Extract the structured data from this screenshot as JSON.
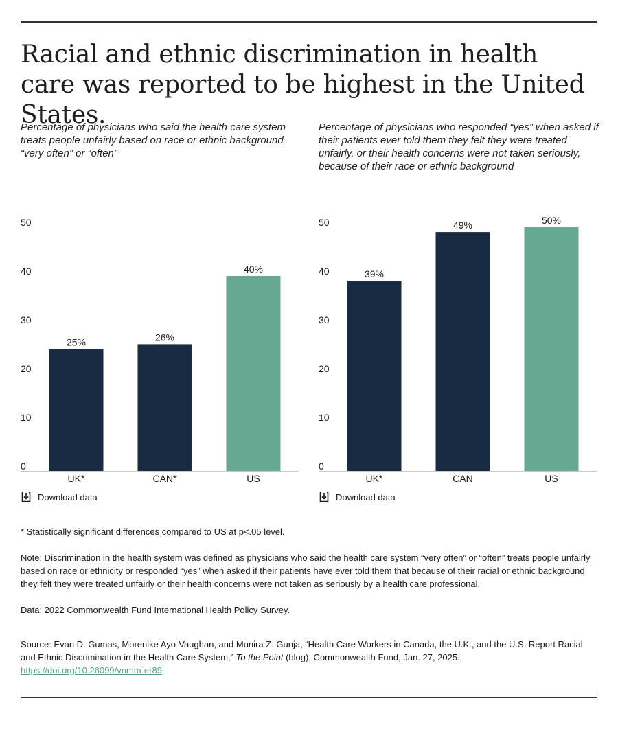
{
  "title": "Racial and ethnic discrimination in health care was reported to be highest in the United States.",
  "colors": {
    "navy": "#172b43",
    "green": "#66a891",
    "link": "#5a9e87"
  },
  "download_label": "Download data",
  "chart_data": [
    {
      "type": "bar",
      "title": "Percentage of physicians who said the health care system treats people unfairly based on race or ethnic background “very often” or “often”",
      "categories": [
        "UK*",
        "CAN*",
        "US"
      ],
      "values": [
        25,
        26,
        40
      ],
      "value_labels": [
        "25%",
        "26%",
        "40%"
      ],
      "highlight": [
        false,
        false,
        true
      ],
      "yticks": [
        "0",
        "10",
        "20",
        "30",
        "40",
        "50"
      ],
      "ylim": [
        0,
        50
      ],
      "xlabel": "",
      "ylabel": ""
    },
    {
      "type": "bar",
      "title": "Percentage of physicians who responded “yes” when asked if their patients ever told them they felt they were treated unfairly, or their health concerns were not taken seriously, because of their race or ethnic background",
      "categories": [
        "UK*",
        "CAN",
        "US"
      ],
      "values": [
        39,
        49,
        50
      ],
      "value_labels": [
        "39%",
        "49%",
        "50%"
      ],
      "highlight": [
        false,
        false,
        true
      ],
      "yticks": [
        "0",
        "10",
        "20",
        "30",
        "40",
        "50"
      ],
      "ylim": [
        0,
        50
      ],
      "xlabel": "",
      "ylabel": ""
    }
  ],
  "notes": {
    "significance": "* Statistically significant differences compared to US at p<.05 level.",
    "note": "Note: Discrimination in the health system was defined as physicians who said the health care system “very often” or “often” treats people unfairly based on race or ethnicity or responded “yes” when asked if their patients have ever told them that because of their racial or ethnic background they felt they were treated unfairly or their health concerns were not taken as seriously by a health care professional.",
    "data": "Data: 2022 Commonwealth Fund International Health Policy Survey.",
    "source_prefix": "Source: Evan D. Gumas, Morenike Ayo-Vaughan, and Munira Z. Gunja, “Health Care Workers in Canada, the U.K., and the U.S. Report Racial and Ethnic Discrimination in the Health Care System,” ",
    "source_pub": "To the Point",
    "source_suffix": " (blog), Commonwealth Fund, Jan. 27, 2025.",
    "source_link": "https://doi.org/10.26099/vnmm-er89"
  }
}
